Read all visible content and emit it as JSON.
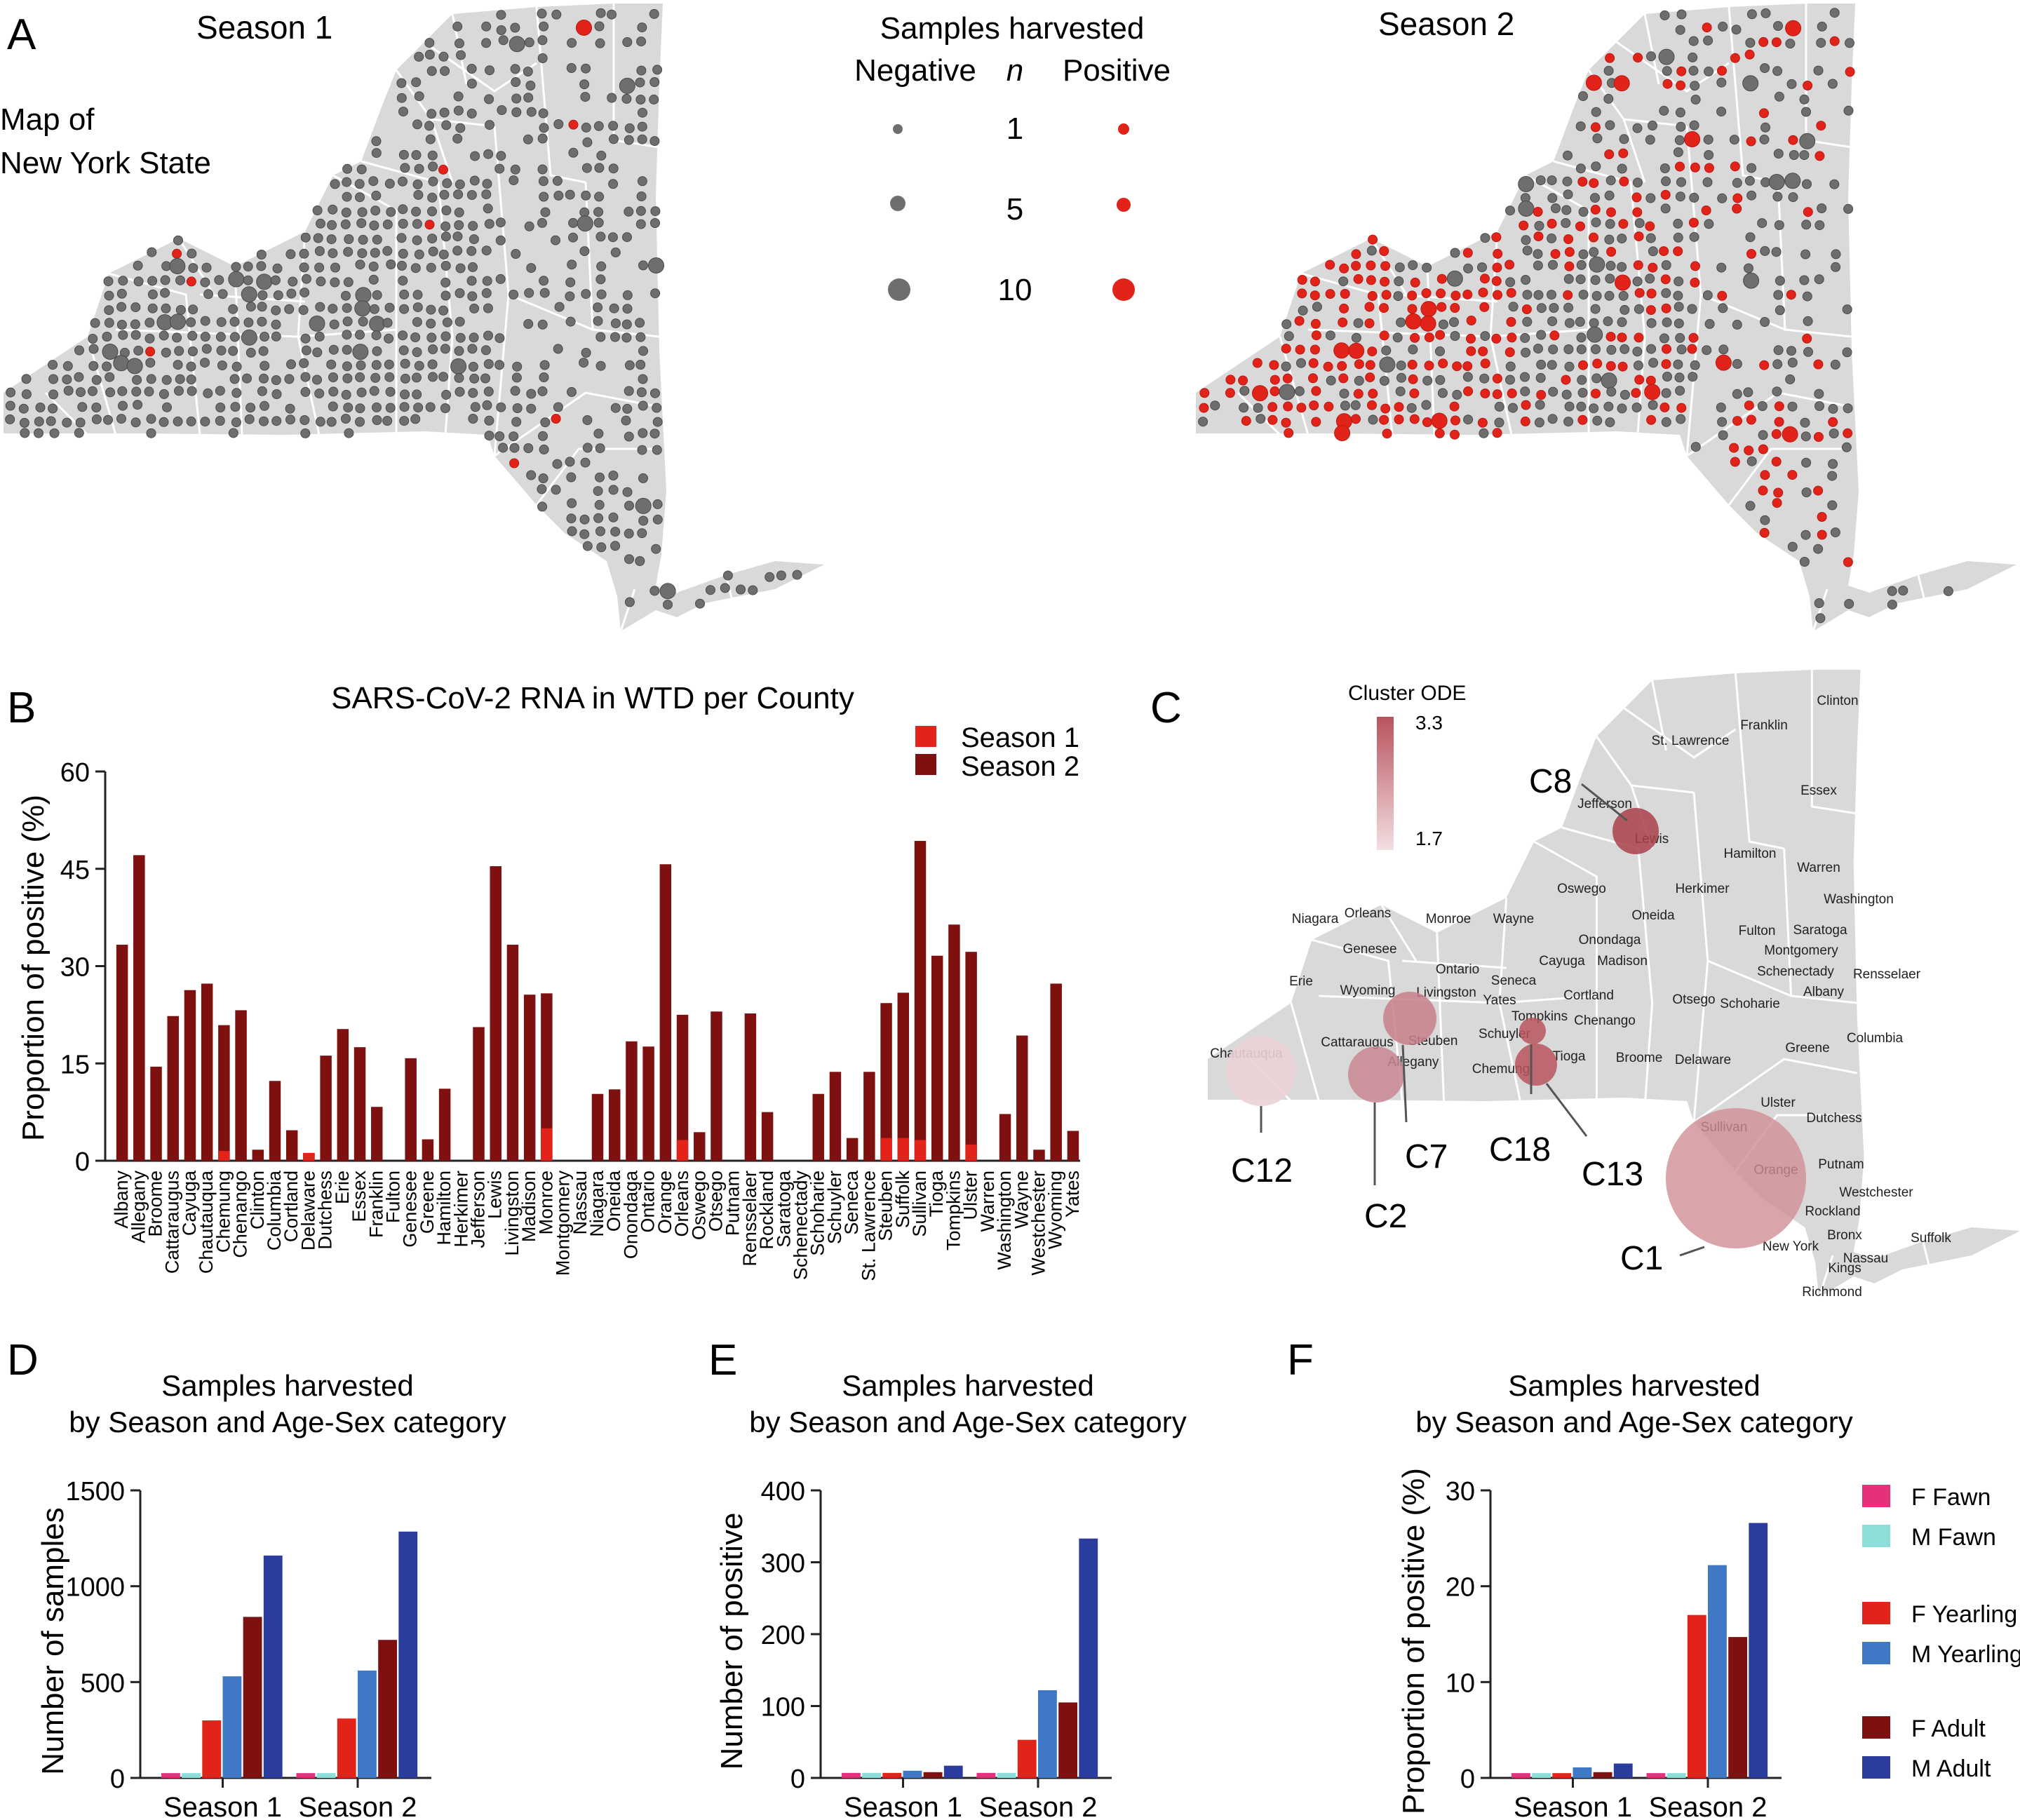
{
  "panel_letters": {
    "a": "A",
    "b": "B",
    "c": "C",
    "d": "D",
    "e": "E",
    "f": "F"
  },
  "maps": {
    "season1_title": "Season 1",
    "season2_title": "Season 2",
    "map_caption_line1": "Map of",
    "map_caption_line2": "New York State",
    "legend": {
      "title": "Samples harvested",
      "negative": "Negative",
      "n": "n",
      "positive": "Positive",
      "sizes": [
        "1",
        "5",
        "10"
      ]
    },
    "colors": {
      "negative": "#6e6e6e",
      "positive": "#e2231a",
      "land": "#d9d9d9",
      "border": "#ffffff"
    }
  },
  "cluster_map": {
    "legend_title": "Cluster ODE",
    "legend_max": "3.3",
    "legend_min": "1.7",
    "clusters": [
      "C8",
      "C12",
      "C2",
      "C7",
      "C18",
      "C13",
      "C1"
    ],
    "counties": [
      "Clinton",
      "Franklin",
      "St. Lawrence",
      "Essex",
      "Jefferson",
      "Lewis",
      "Hamilton",
      "Warren",
      "Oswego",
      "Herkimer",
      "Washington",
      "Niagara",
      "Orleans",
      "Monroe",
      "Wayne",
      "Oneida",
      "Fulton",
      "Saratoga",
      "Onondaga",
      "Montgomery",
      "Genesee",
      "Schenectady",
      "Rensselaer",
      "Ontario",
      "Seneca",
      "Cayuga",
      "Madison",
      "Albany",
      "Erie",
      "Wyoming",
      "Livingston",
      "Yates",
      "Cortland",
      "Otsego",
      "Schoharie",
      "Tompkins",
      "Chenango",
      "Schuyler",
      "Steuben",
      "Cattaraugus",
      "Chautauqua",
      "Allegany",
      "Chemung",
      "Tioga",
      "Broome",
      "Delaware",
      "Greene",
      "Columbia",
      "Ulster",
      "Dutchess",
      "Sullivan",
      "Orange",
      "Putnam",
      "Westchester",
      "Rockland",
      "Bronx",
      "Suffolk",
      "New York",
      "Nassau",
      "Kings",
      "Richmond"
    ]
  },
  "chart_data": [
    {
      "type": "bar",
      "title": "SARS-CoV-2 RNA in WTD per County",
      "xlabel": "",
      "ylabel": "Proportion of positive (%)",
      "ylim": [
        0,
        60
      ],
      "yticks": [
        "0",
        "15",
        "30",
        "45",
        "60"
      ],
      "legend_position": "top-right",
      "categories": [
        "Albany",
        "Allegany",
        "Broome",
        "Cattaraugus",
        "Cayuga",
        "Chautauqua",
        "Chemung",
        "Chenango",
        "Clinton",
        "Columbia",
        "Cortland",
        "Delaware",
        "Dutchess",
        "Erie",
        "Essex",
        "Franklin",
        "Fulton",
        "Genesee",
        "Greene",
        "Hamilton",
        "Herkimer",
        "Jefferson",
        "Lewis",
        "Livingston",
        "Madison",
        "Monroe",
        "Montgomery",
        "Nassau",
        "Niagara",
        "Oneida",
        "Onondaga",
        "Ontario",
        "Orange",
        "Orleans",
        "Oswego",
        "Otsego",
        "Putnam",
        "Rensselaer",
        "Rockland",
        "Saratoga",
        "Schenectady",
        "Schoharie",
        "Schuyler",
        "Seneca",
        "St. Lawrence",
        "Steuben",
        "Suffolk",
        "Sullivan",
        "Tioga",
        "Tompkins",
        "Ulster",
        "Warren",
        "Washington",
        "Wayne",
        "Westchester",
        "Wyoming",
        "Yates"
      ],
      "series": [
        {
          "name": "Season 1",
          "color": "#e2231a",
          "values": [
            0,
            0,
            0,
            0,
            0,
            0,
            1.5,
            0,
            0,
            0,
            0,
            1.2,
            0,
            0,
            0,
            0,
            0,
            0,
            0,
            0,
            0,
            0,
            0,
            0,
            0,
            5,
            0,
            0,
            0,
            0,
            0,
            0,
            0,
            3.2,
            0,
            0,
            0,
            0,
            0,
            0,
            0,
            0,
            0,
            0,
            0,
            3.5,
            3.5,
            3.2,
            0,
            0,
            2.5,
            0,
            0,
            0,
            0,
            0,
            0
          ]
        },
        {
          "name": "Season 2",
          "color": "#7f1010",
          "values": [
            33.3,
            47.1,
            14.5,
            22.3,
            26.3,
            27.3,
            20.9,
            23.2,
            1.7,
            12.3,
            4.7,
            1.2,
            16.2,
            20.3,
            17.5,
            8.3,
            0,
            15.8,
            3.3,
            11.1,
            0,
            20.6,
            45.4,
            33.3,
            25.6,
            25.8,
            0,
            0,
            10.3,
            11,
            18.4,
            17.6,
            45.7,
            22.5,
            4.4,
            23,
            0,
            22.7,
            7.5,
            0,
            0,
            10.3,
            13.7,
            3.5,
            13.7,
            24.3,
            25.9,
            49.3,
            31.6,
            36.4,
            32.2,
            0,
            7.2,
            19.3,
            1.7,
            27.3,
            4.6
          ]
        }
      ]
    },
    {
      "type": "bar",
      "title": "Samples harvested\nby Season and Age-Sex category",
      "title_line1": "Samples harvested",
      "title_line2": "by Season and Age-Sex category",
      "xlabel": "",
      "ylabel": "Number of samples",
      "ylim": [
        0,
        1500
      ],
      "yticks": [
        "0",
        "500",
        "1000",
        "1500"
      ],
      "categories": [
        "Season 1",
        "Season 2"
      ],
      "series": [
        {
          "name": "F Fawn",
          "color": "#e5317c",
          "values": [
            25,
            25
          ]
        },
        {
          "name": "M Fawn",
          "color": "#8dddd9",
          "values": [
            25,
            25
          ]
        },
        {
          "name": "F Yearling",
          "color": "#e2231a",
          "values": [
            300,
            310
          ]
        },
        {
          "name": "M Yearling",
          "color": "#3f78c5",
          "values": [
            530,
            560
          ]
        },
        {
          "name": "F Adult",
          "color": "#7f1010",
          "values": [
            840,
            720
          ]
        },
        {
          "name": "M Adult",
          "color": "#2a3c9e",
          "values": [
            1160,
            1285
          ]
        }
      ]
    },
    {
      "type": "bar",
      "title": "Samples harvested\nby Season and Age-Sex category",
      "title_line1": "Samples harvested",
      "title_line2": "by Season and Age-Sex category",
      "xlabel": "",
      "ylabel": "Number of positive",
      "ylim": [
        0,
        400
      ],
      "yticks": [
        "0",
        "100",
        "200",
        "300",
        "400"
      ],
      "categories": [
        "Season 1",
        "Season 2"
      ],
      "series": [
        {
          "name": "F Fawn",
          "color": "#e5317c",
          "values": [
            7,
            7
          ]
        },
        {
          "name": "M Fawn",
          "color": "#8dddd9",
          "values": [
            7,
            7
          ]
        },
        {
          "name": "F Yearling",
          "color": "#e2231a",
          "values": [
            7,
            53
          ]
        },
        {
          "name": "M Yearling",
          "color": "#3f78c5",
          "values": [
            10,
            122
          ]
        },
        {
          "name": "F Adult",
          "color": "#7f1010",
          "values": [
            8,
            105
          ]
        },
        {
          "name": "M Adult",
          "color": "#2a3c9e",
          "values": [
            17,
            333
          ]
        }
      ]
    },
    {
      "type": "bar",
      "title": "Samples harvested\nby Season and Age-Sex category",
      "title_line1": "Samples harvested",
      "title_line2": "by Season and Age-Sex category",
      "xlabel": "",
      "ylabel": "Proportion of positive (%)",
      "ylim": [
        0,
        30
      ],
      "yticks": [
        "0",
        "10",
        "20",
        "30"
      ],
      "categories": [
        "Season 1",
        "Season 2"
      ],
      "legend_position": "right",
      "series": [
        {
          "name": "F Fawn",
          "color": "#e5317c",
          "values": [
            0.5,
            0.5
          ]
        },
        {
          "name": "M Fawn",
          "color": "#8dddd9",
          "values": [
            0.5,
            0.5
          ]
        },
        {
          "name": "F Yearling",
          "color": "#e2231a",
          "values": [
            0.5,
            17
          ]
        },
        {
          "name": "M Yearling",
          "color": "#3f78c5",
          "values": [
            1.1,
            22.2
          ]
        },
        {
          "name": "F Adult",
          "color": "#7f1010",
          "values": [
            0.6,
            14.7
          ]
        },
        {
          "name": "M Adult",
          "color": "#2a3c9e",
          "values": [
            1.5,
            26.6
          ]
        }
      ]
    }
  ]
}
